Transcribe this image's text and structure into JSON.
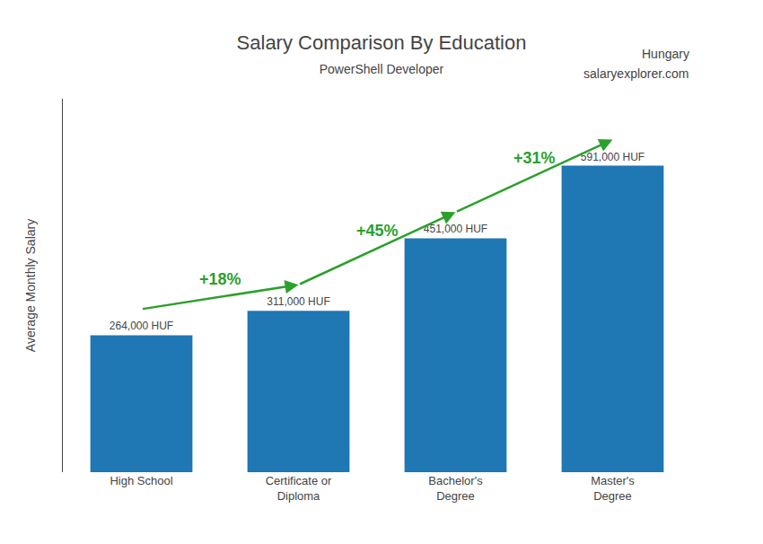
{
  "chart_data": {
    "type": "bar",
    "title": "Salary Comparison By Education",
    "subtitle": "PowerShell Developer",
    "ylabel": "Average Monthly Salary",
    "categories": [
      "High School",
      "Certificate or\nDiploma",
      "Bachelor's\nDegree",
      "Master's\nDegree"
    ],
    "values": [
      264000,
      311000,
      451000,
      591000
    ],
    "value_labels": [
      "264,000 HUF",
      "311,000 HUF",
      "451,000 HUF",
      "591,000 HUF"
    ],
    "data_labels": true,
    "ylim": [
      0,
      720000
    ],
    "tick_labels": "x",
    "grid": false,
    "annotations": [
      "Hungary",
      "salaryexplorer.com",
      {
        "text": "+18%",
        "from": "High School",
        "to": "Certificate or\nDiploma"
      },
      {
        "text": "+45%",
        "from": "Certificate or\nDiploma",
        "to": "Bachelor's\nDegree"
      },
      {
        "text": "+31%",
        "from": "Bachelor's\nDegree",
        "to": "Master's\nDegree"
      }
    ]
  }
}
